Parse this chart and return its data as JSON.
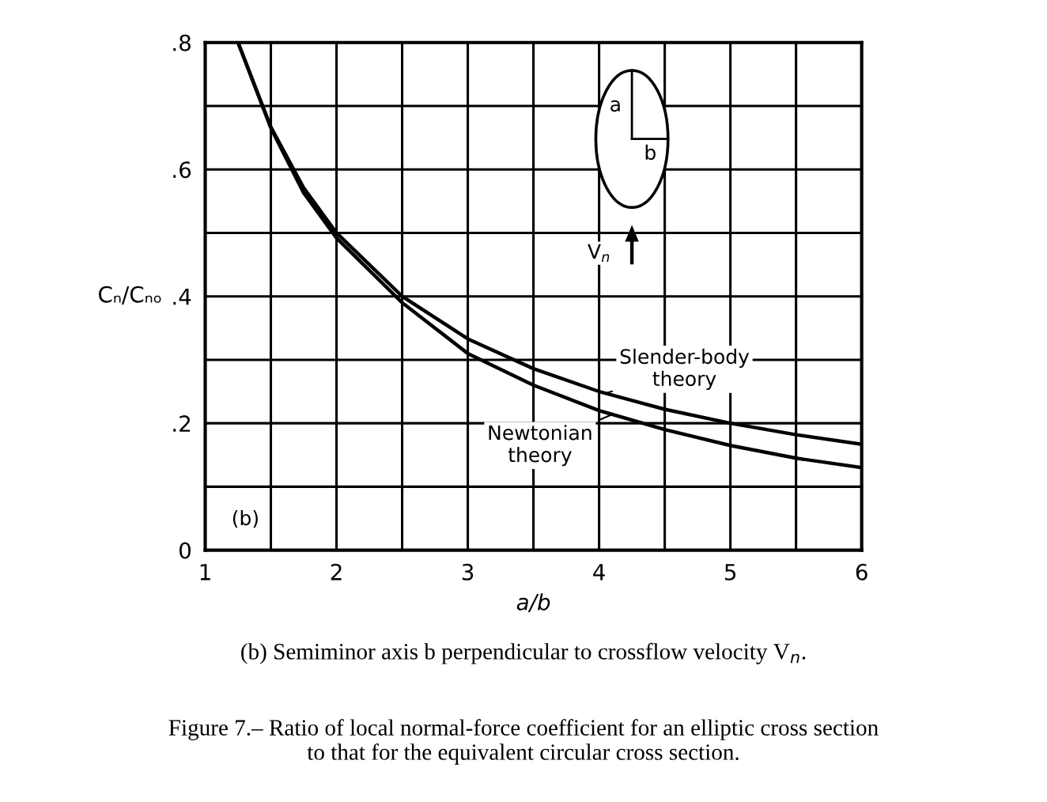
{
  "chart_data": {
    "type": "line",
    "xlabel": "a/b",
    "ylabel": "Cₙ/Cₙₒ",
    "x": [
      1.25,
      1.5,
      1.75,
      2,
      2.5,
      3,
      3.5,
      4,
      4.5,
      5,
      5.5,
      6
    ],
    "series": [
      {
        "name": "Slender-body\ntheory",
        "color": "#000000",
        "values": [
          0.8,
          0.667,
          0.571,
          0.5,
          0.4,
          0.333,
          0.286,
          0.25,
          0.222,
          0.2,
          0.182,
          0.167
        ]
      },
      {
        "name": "Newtonian\ntheory",
        "color": "#000000",
        "values": [
          0.8,
          0.665,
          0.563,
          0.492,
          0.39,
          0.31,
          0.26,
          0.22,
          0.19,
          0.165,
          0.145,
          0.13
        ]
      }
    ],
    "xlim": [
      1,
      6
    ],
    "ylim": [
      0,
      0.8
    ],
    "xticks": [
      1,
      {
        "value": 1.5,
        "label": null
      },
      2,
      {
        "value": 2.5,
        "label": null
      },
      3,
      {
        "value": 3.5,
        "label": null
      },
      4,
      {
        "value": 4.5,
        "label": null
      },
      5,
      {
        "value": 5.5,
        "label": null
      },
      6
    ],
    "yticks": [
      0,
      {
        "value": 0.1,
        "label": null
      },
      {
        "value": 0.2,
        "label": ".2"
      },
      {
        "value": 0.3,
        "label": null
      },
      {
        "value": 0.4,
        "label": ".4"
      },
      {
        "value": 0.5,
        "label": null
      },
      {
        "value": 0.6,
        "label": ".6"
      },
      {
        "value": 0.7,
        "label": null
      },
      {
        "value": 0.8,
        "label": ".8"
      }
    ],
    "grid": true,
    "marker": "none",
    "line_style": "solid",
    "annotations": [
      "(b)",
      "a",
      "b",
      "V$_{n}$",
      "(b) Semiminor axis b perpendicular to crossflow velocity V$_{n}$.",
      "Figure 7.– Ratio of local normal-force coefficient for an elliptic cross section\nto that for the equivalent circular cross section."
    ]
  }
}
